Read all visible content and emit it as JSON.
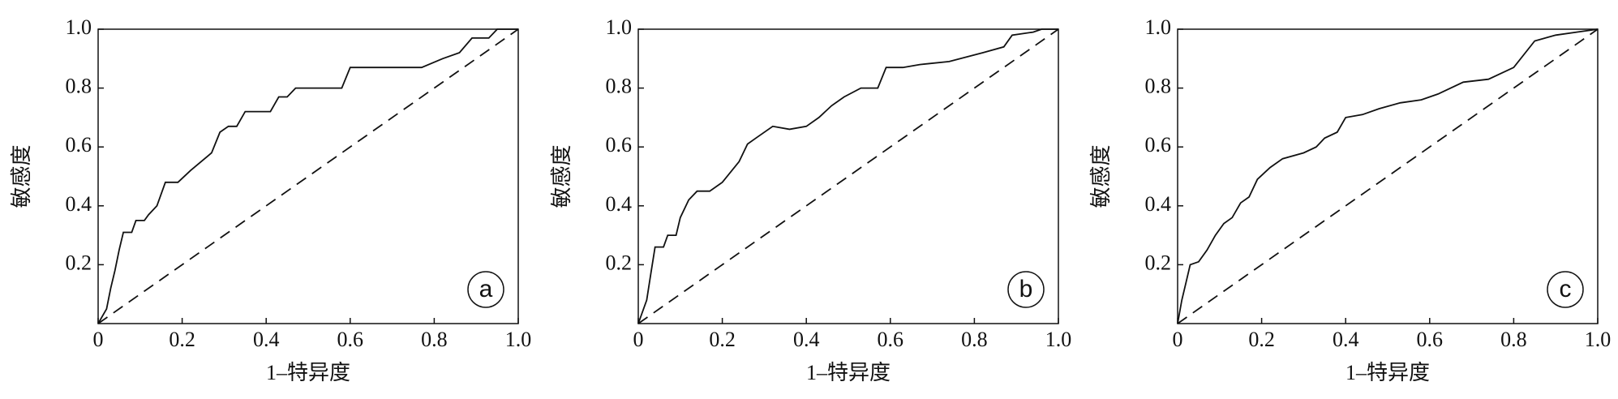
{
  "chart_data": [
    {
      "type": "line",
      "xlabel": "1–特异度",
      "ylabel": "敏感度",
      "annotation": "a",
      "xlim": [
        0,
        1
      ],
      "ylim": [
        0,
        1
      ],
      "xticks": [
        0,
        0.2,
        0.4,
        0.6,
        0.8,
        {
          "value": 1,
          "label": "1.0"
        }
      ],
      "yticks": [
        0.2,
        0.4,
        0.6,
        0.8,
        {
          "value": 1,
          "label": "1.0"
        }
      ],
      "series": [
        {
          "color": "#111111",
          "x": [
            0,
            0.02,
            0.03,
            0.04,
            0.05,
            0.06,
            0.08,
            0.09,
            0.11,
            0.12,
            0.14,
            0.16,
            0.19,
            0.22,
            0.27,
            0.29,
            0.31,
            0.33,
            0.35,
            0.41,
            0.43,
            0.45,
            0.47,
            0.55,
            0.58,
            0.6,
            0.77,
            0.82,
            0.86,
            0.89,
            0.93,
            0.95,
            1
          ],
          "values": [
            0,
            0.05,
            0.12,
            0.18,
            0.25,
            0.31,
            0.31,
            0.35,
            0.35,
            0.37,
            0.4,
            0.48,
            0.48,
            0.52,
            0.58,
            0.65,
            0.67,
            0.67,
            0.72,
            0.72,
            0.77,
            0.77,
            0.8,
            0.8,
            0.8,
            0.87,
            0.87,
            0.9,
            0.92,
            0.97,
            0.97,
            1,
            1
          ]
        },
        {
          "color": "#111111",
          "dashed": true,
          "x": [
            0,
            1
          ],
          "values": [
            0,
            1
          ]
        }
      ]
    },
    {
      "type": "line",
      "xlabel": "1–特异度",
      "ylabel": "敏感度",
      "annotation": "b",
      "xlim": [
        0,
        1
      ],
      "ylim": [
        0,
        1
      ],
      "xticks": [
        0,
        0.2,
        0.4,
        0.6,
        0.8,
        {
          "value": 1,
          "label": "1.0"
        }
      ],
      "yticks": [
        0.2,
        0.4,
        0.6,
        0.8,
        {
          "value": 1,
          "label": "1.0"
        }
      ],
      "series": [
        {
          "color": "#111111",
          "x": [
            0,
            0.02,
            0.03,
            0.04,
            0.06,
            0.07,
            0.09,
            0.1,
            0.12,
            0.14,
            0.17,
            0.2,
            0.24,
            0.26,
            0.28,
            0.32,
            0.36,
            0.4,
            0.43,
            0.46,
            0.49,
            0.53,
            0.57,
            0.59,
            0.63,
            0.67,
            0.74,
            0.82,
            0.87,
            0.89,
            0.94,
            0.96,
            1
          ],
          "values": [
            0,
            0.08,
            0.17,
            0.26,
            0.26,
            0.3,
            0.3,
            0.36,
            0.42,
            0.45,
            0.45,
            0.48,
            0.55,
            0.61,
            0.63,
            0.67,
            0.66,
            0.67,
            0.7,
            0.74,
            0.77,
            0.8,
            0.8,
            0.87,
            0.87,
            0.88,
            0.89,
            0.92,
            0.94,
            0.98,
            0.99,
            1,
            1
          ]
        },
        {
          "color": "#111111",
          "dashed": true,
          "x": [
            0,
            1
          ],
          "values": [
            0,
            1
          ]
        }
      ]
    },
    {
      "type": "line",
      "xlabel": "1–特异度",
      "ylabel": "敏感度",
      "annotation": "c",
      "xlim": [
        0,
        1
      ],
      "ylim": [
        0,
        1
      ],
      "xticks": [
        0,
        0.2,
        0.4,
        0.6,
        0.8,
        {
          "value": 1,
          "label": "1.0"
        }
      ],
      "yticks": [
        0.2,
        0.4,
        0.6,
        0.8,
        {
          "value": 1,
          "label": "1.0"
        }
      ],
      "series": [
        {
          "color": "#111111",
          "x": [
            0,
            0.01,
            0.02,
            0.03,
            0.05,
            0.07,
            0.09,
            0.11,
            0.13,
            0.15,
            0.17,
            0.19,
            0.22,
            0.25,
            0.3,
            0.33,
            0.35,
            0.38,
            0.4,
            0.44,
            0.48,
            0.53,
            0.58,
            0.62,
            0.68,
            0.74,
            0.8,
            0.85,
            0.9,
            0.95,
            1
          ],
          "values": [
            0,
            0.08,
            0.14,
            0.2,
            0.21,
            0.25,
            0.3,
            0.34,
            0.36,
            0.41,
            0.43,
            0.49,
            0.53,
            0.56,
            0.58,
            0.6,
            0.63,
            0.65,
            0.7,
            0.71,
            0.73,
            0.75,
            0.76,
            0.78,
            0.82,
            0.83,
            0.87,
            0.96,
            0.98,
            0.99,
            1
          ]
        },
        {
          "color": "#111111",
          "dashed": true,
          "x": [
            0,
            1
          ],
          "values": [
            0,
            1
          ]
        }
      ]
    }
  ]
}
